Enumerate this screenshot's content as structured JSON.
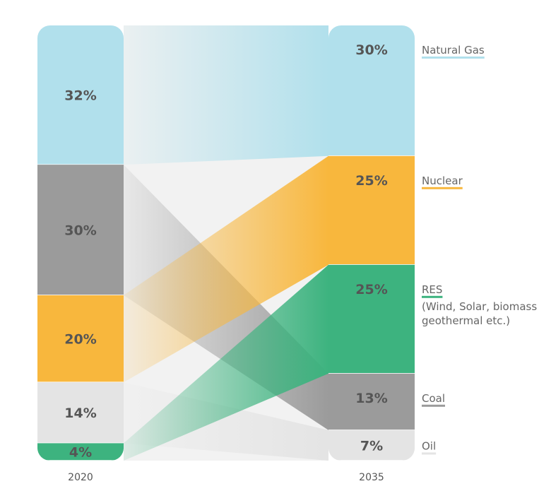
{
  "chart_data": {
    "type": "sankey",
    "x": [
      "2020",
      "2035"
    ],
    "categories": [
      "Natural Gas",
      "Coal",
      "Nuclear",
      "Oil",
      "RES"
    ],
    "series": [
      {
        "name": "Natural Gas",
        "values": [
          32,
          30
        ],
        "labels": [
          "32%",
          "30%"
        ],
        "color": "#b1e0ec",
        "legend_sub": []
      },
      {
        "name": "Coal",
        "values": [
          30,
          13
        ],
        "labels": [
          "30%",
          "13%"
        ],
        "color": "#9b9b9b",
        "legend_sub": []
      },
      {
        "name": "Nuclear",
        "values": [
          20,
          25
        ],
        "labels": [
          "20%",
          "25%"
        ],
        "color": "#f8b73d",
        "legend_sub": []
      },
      {
        "name": "Oil",
        "values": [
          14,
          7
        ],
        "labels": [
          "14%",
          "7%"
        ],
        "color": "#e4e4e4",
        "legend_sub": []
      },
      {
        "name": "RES",
        "values": [
          4,
          25
        ],
        "labels": [
          "4%",
          "25%"
        ],
        "color": "#3db37f",
        "legend_sub": [
          "(Wind, Solar, biomass",
          "geothermal etc.)"
        ]
      }
    ],
    "order_2020": [
      "Natural Gas",
      "Coal",
      "Nuclear",
      "Oil",
      "RES"
    ],
    "order_2035": [
      "Natural Gas",
      "Nuclear",
      "RES",
      "Coal",
      "Oil"
    ],
    "legend_position": "right",
    "background_color": "#f2f2f2"
  }
}
